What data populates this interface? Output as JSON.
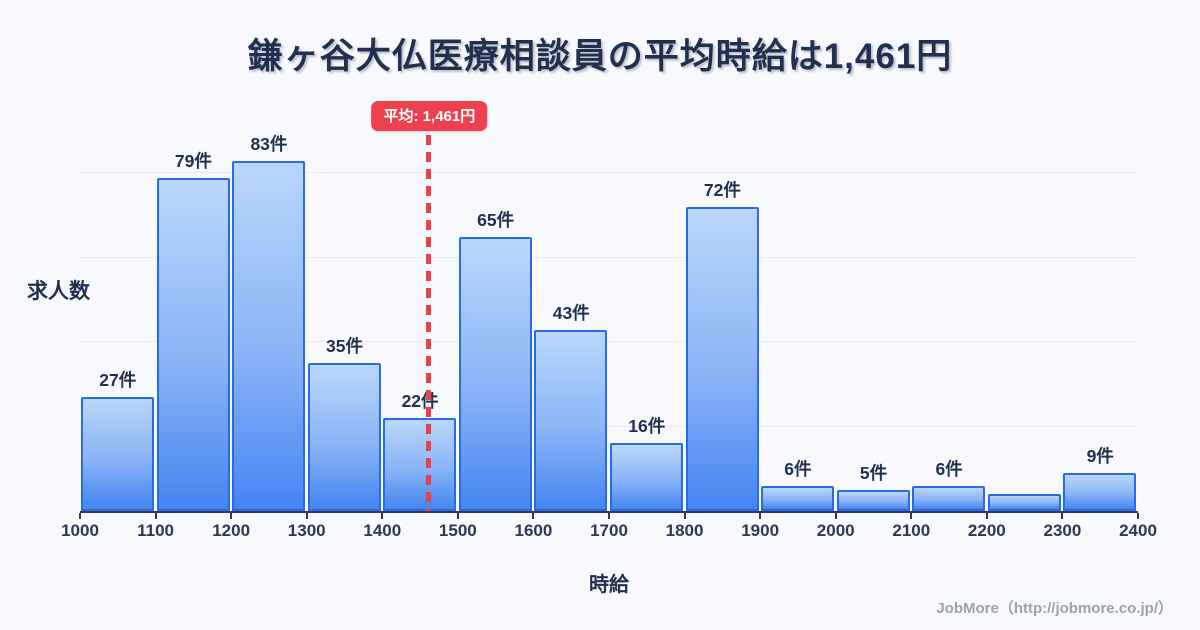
{
  "title": "鎌ヶ谷大仏医療相談員の平均時給は1,461円",
  "average_badge": "平均: 1,461円",
  "footer": "JobMore（http://jobmore.co.jp/）",
  "chart_data": {
    "type": "bar",
    "title": "鎌ヶ谷大仏医療相談員の平均時給は1,461円",
    "xlabel": "時給",
    "ylabel": "求人数",
    "categories": [
      "1000-1100",
      "1100-1200",
      "1200-1300",
      "1300-1400",
      "1400-1500",
      "1500-1600",
      "1600-1700",
      "1700-1800",
      "1800-1900",
      "1900-2000",
      "2000-2100",
      "2100-2200",
      "2200-2300",
      "2300-2400"
    ],
    "values": [
      27,
      79,
      83,
      35,
      22,
      65,
      43,
      16,
      72,
      6,
      5,
      6,
      4,
      9
    ],
    "bar_labels": [
      "27件",
      "79件",
      "83件",
      "35件",
      "22件",
      "65件",
      "43件",
      "16件",
      "72件",
      "6件",
      "5件",
      "6件",
      "",
      "9件"
    ],
    "x_ticks": [
      "1000",
      "1100",
      "1200",
      "1300",
      "1400",
      "1500",
      "1600",
      "1700",
      "1800",
      "1900",
      "2000",
      "2100",
      "2200",
      "2300",
      "2400"
    ],
    "xlim": [
      1000,
      2400
    ],
    "ylim": [
      0,
      91
    ],
    "gridlines": [
      20,
      40,
      60,
      80
    ],
    "average": 1461,
    "average_label": "平均: 1,461円",
    "legend": "none",
    "grid": "horizontal",
    "colors": {
      "background": "#f8f9fc",
      "bar_fill_top": "#bad6fa",
      "bar_fill_bottom": "#4585f2",
      "bar_border": "#2a6be2",
      "average_line": "#e8404e",
      "average_badge_bg": "#ee4150",
      "title_text": "#22304f",
      "axis_line": "#2c3a52",
      "gridline": "#e7ebf3",
      "footer_text": "#9aa1ac"
    }
  }
}
